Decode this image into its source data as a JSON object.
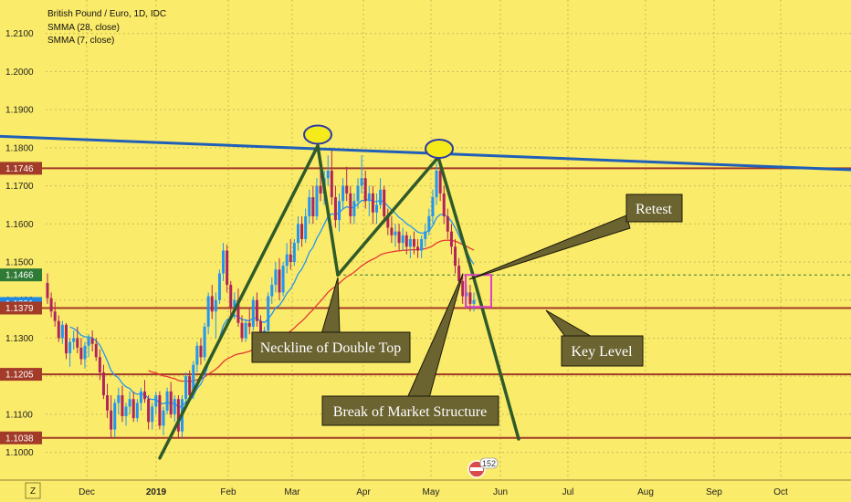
{
  "chart_data": {
    "type": "candlestick",
    "title": "British Pound / Euro, 1D, IDC",
    "indicators": [
      {
        "name": "SMMA (28, close)",
        "color": "#e53935"
      },
      {
        "name": "SMMA (7, close)",
        "color": "#2196f3"
      }
    ],
    "y_ticks": [
      "1.2100",
      "1.2000",
      "1.1900",
      "1.1800",
      "1.1700",
      "1.1600",
      "1.1500",
      "1.1400",
      "1.1300",
      "1.1200",
      "1.1100",
      "1.1000"
    ],
    "ylim": [
      1.0955,
      1.2155
    ],
    "x_ticks": [
      "Dec",
      "2019",
      "Feb",
      "Mar",
      "Apr",
      "May",
      "Jun",
      "Jul",
      "Aug",
      "Sep",
      "Oct"
    ],
    "price_badges": [
      {
        "label": "1.1746",
        "value": 1.1746,
        "color": "#a23b28"
      },
      {
        "label": "1.1466",
        "value": 1.1466,
        "color": "#2f7a35"
      },
      {
        "label": "1.1391",
        "value": 1.1391,
        "color": "#1e88e5"
      },
      {
        "label": "1.1379",
        "value": 1.1379,
        "color": "#a23b28"
      },
      {
        "label": "1.1205",
        "value": 1.1205,
        "color": "#a23b28"
      },
      {
        "label": "1.1038",
        "value": 1.1038,
        "color": "#a23b28"
      }
    ],
    "horizontal_levels": [
      1.1746,
      1.1379,
      1.1205,
      1.1038
    ],
    "neckline_level": 1.1466,
    "trendline": {
      "from": [
        0,
        1.183
      ],
      "to": [
        932,
        1.1742
      ]
    },
    "pattern_lines": [
      [
        [
          175,
          1.0985
        ],
        [
          348,
          1.1805
        ]
      ],
      [
        [
          348,
          1.1805
        ],
        [
          370,
          1.1466
        ]
      ],
      [
        [
          370,
          1.1466
        ],
        [
          480,
          1.1775
        ]
      ],
      [
        [
          480,
          1.1775
        ],
        [
          518,
          1.1466
        ]
      ],
      [
        [
          518,
          1.1466
        ],
        [
          568,
          1.1035
        ]
      ]
    ],
    "peaks": [
      {
        "x": 348,
        "y": 1.182
      },
      {
        "x": 481,
        "y": 1.1783
      }
    ],
    "retest_box": {
      "x1": 510,
      "x2": 538,
      "y1": 1.1382,
      "y2": 1.1466
    },
    "ohlc": [
      [
        1.1445,
        1.147,
        1.139,
        1.1405
      ],
      [
        1.1405,
        1.142,
        1.1355,
        1.137
      ],
      [
        1.137,
        1.1395,
        1.133,
        1.1345
      ],
      [
        1.1345,
        1.136,
        1.129,
        1.13
      ],
      [
        1.13,
        1.1345,
        1.1285,
        1.1335
      ],
      [
        1.1335,
        1.134,
        1.1245,
        1.126
      ],
      [
        1.126,
        1.13,
        1.1225,
        1.129
      ],
      [
        1.129,
        1.132,
        1.127,
        1.13
      ],
      [
        1.13,
        1.133,
        1.126,
        1.1275
      ],
      [
        1.1275,
        1.13,
        1.123,
        1.1245
      ],
      [
        1.1245,
        1.129,
        1.122,
        1.128
      ],
      [
        1.128,
        1.131,
        1.125,
        1.13
      ],
      [
        1.13,
        1.132,
        1.1265,
        1.1285
      ],
      [
        1.1285,
        1.13,
        1.124,
        1.125
      ],
      [
        1.125,
        1.127,
        1.119,
        1.121
      ],
      [
        1.121,
        1.123,
        1.114,
        1.115
      ],
      [
        1.115,
        1.118,
        1.109,
        1.111
      ],
      [
        1.111,
        1.115,
        1.104,
        1.106
      ],
      [
        1.106,
        1.114,
        1.104,
        1.113
      ],
      [
        1.113,
        1.117,
        1.11,
        1.115
      ],
      [
        1.115,
        1.1175,
        1.108,
        1.1095
      ],
      [
        1.1095,
        1.113,
        1.107,
        1.112
      ],
      [
        1.112,
        1.116,
        1.11,
        1.114
      ],
      [
        1.114,
        1.116,
        1.108,
        1.109
      ],
      [
        1.109,
        1.114,
        1.108,
        1.113
      ],
      [
        1.113,
        1.117,
        1.111,
        1.116
      ],
      [
        1.116,
        1.119,
        1.113,
        1.114
      ],
      [
        1.114,
        1.115,
        1.106,
        1.108
      ],
      [
        1.108,
        1.113,
        1.106,
        1.112
      ],
      [
        1.112,
        1.116,
        1.11,
        1.115
      ],
      [
        1.115,
        1.116,
        1.106,
        1.107
      ],
      [
        1.107,
        1.112,
        1.1045,
        1.111
      ],
      [
        1.111,
        1.117,
        1.11,
        1.116
      ],
      [
        1.116,
        1.1185,
        1.109,
        1.11
      ],
      [
        1.11,
        1.115,
        1.108,
        1.114
      ],
      [
        1.114,
        1.115,
        1.104,
        1.1055
      ],
      [
        1.1055,
        1.115,
        1.104,
        1.114
      ],
      [
        1.114,
        1.121,
        1.112,
        1.12
      ],
      [
        1.12,
        1.1215,
        1.114,
        1.115
      ],
      [
        1.115,
        1.124,
        1.114,
        1.123
      ],
      [
        1.123,
        1.129,
        1.121,
        1.128
      ],
      [
        1.128,
        1.13,
        1.123,
        1.125
      ],
      [
        1.125,
        1.134,
        1.124,
        1.133
      ],
      [
        1.133,
        1.142,
        1.131,
        1.141
      ],
      [
        1.141,
        1.144,
        1.135,
        1.137
      ],
      [
        1.137,
        1.142,
        1.13,
        1.14
      ],
      [
        1.14,
        1.148,
        1.139,
        1.147
      ],
      [
        1.147,
        1.155,
        1.145,
        1.153
      ],
      [
        1.153,
        1.1545,
        1.142,
        1.144
      ],
      [
        1.144,
        1.145,
        1.136,
        1.138
      ],
      [
        1.138,
        1.142,
        1.135,
        1.14
      ],
      [
        1.14,
        1.143,
        1.133,
        1.134
      ],
      [
        1.134,
        1.136,
        1.129,
        1.13
      ],
      [
        1.13,
        1.135,
        1.129,
        1.134
      ],
      [
        1.134,
        1.138,
        1.131,
        1.133
      ],
      [
        1.133,
        1.141,
        1.132,
        1.14
      ],
      [
        1.14,
        1.142,
        1.133,
        1.1345
      ],
      [
        1.1345,
        1.136,
        1.129,
        1.13
      ],
      [
        1.13,
        1.133,
        1.128,
        1.132
      ],
      [
        1.132,
        1.142,
        1.131,
        1.141
      ],
      [
        1.141,
        1.146,
        1.139,
        1.144
      ],
      [
        1.144,
        1.15,
        1.142,
        1.148
      ],
      [
        1.148,
        1.151,
        1.14,
        1.142
      ],
      [
        1.142,
        1.15,
        1.141,
        1.149
      ],
      [
        1.149,
        1.155,
        1.147,
        1.152
      ],
      [
        1.152,
        1.156,
        1.148,
        1.15
      ],
      [
        1.15,
        1.156,
        1.149,
        1.155
      ],
      [
        1.155,
        1.162,
        1.153,
        1.16
      ],
      [
        1.16,
        1.162,
        1.154,
        1.156
      ],
      [
        1.156,
        1.164,
        1.155,
        1.162
      ],
      [
        1.162,
        1.169,
        1.16,
        1.167
      ],
      [
        1.167,
        1.17,
        1.16,
        1.162
      ],
      [
        1.162,
        1.172,
        1.161,
        1.17
      ],
      [
        1.17,
        1.176,
        1.166,
        1.168
      ],
      [
        1.168,
        1.174,
        1.165,
        1.172
      ],
      [
        1.172,
        1.178,
        1.17,
        1.174
      ],
      [
        1.174,
        1.18,
        1.165,
        1.167
      ],
      [
        1.167,
        1.17,
        1.159,
        1.161
      ],
      [
        1.161,
        1.168,
        1.158,
        1.166
      ],
      [
        1.166,
        1.172,
        1.164,
        1.17
      ],
      [
        1.17,
        1.175,
        1.166,
        1.168
      ],
      [
        1.168,
        1.17,
        1.16,
        1.162
      ],
      [
        1.162,
        1.168,
        1.16,
        1.166
      ],
      [
        1.166,
        1.172,
        1.164,
        1.17
      ],
      [
        1.17,
        1.178,
        1.168,
        1.172
      ],
      [
        1.172,
        1.174,
        1.164,
        1.166
      ],
      [
        1.166,
        1.17,
        1.162,
        1.168
      ],
      [
        1.168,
        1.17,
        1.16,
        1.163
      ],
      [
        1.163,
        1.168,
        1.16,
        1.165
      ],
      [
        1.165,
        1.172,
        1.164,
        1.169
      ],
      [
        1.169,
        1.17,
        1.161,
        1.162
      ],
      [
        1.162,
        1.164,
        1.157,
        1.159
      ],
      [
        1.159,
        1.162,
        1.155,
        1.157
      ],
      [
        1.157,
        1.16,
        1.154,
        1.158
      ],
      [
        1.158,
        1.16,
        1.153,
        1.155
      ],
      [
        1.155,
        1.159,
        1.153,
        1.157
      ],
      [
        1.157,
        1.158,
        1.152,
        1.154
      ],
      [
        1.154,
        1.157,
        1.151,
        1.156
      ],
      [
        1.156,
        1.158,
        1.152,
        1.154
      ],
      [
        1.154,
        1.156,
        1.151,
        1.153
      ],
      [
        1.153,
        1.157,
        1.151,
        1.156
      ],
      [
        1.156,
        1.16,
        1.154,
        1.158
      ],
      [
        1.158,
        1.164,
        1.157,
        1.162
      ],
      [
        1.162,
        1.169,
        1.16,
        1.167
      ],
      [
        1.167,
        1.176,
        1.165,
        1.174
      ],
      [
        1.174,
        1.177,
        1.166,
        1.168
      ],
      [
        1.168,
        1.17,
        1.16,
        1.162
      ],
      [
        1.162,
        1.164,
        1.156,
        1.158
      ],
      [
        1.158,
        1.16,
        1.152,
        1.154
      ],
      [
        1.154,
        1.156,
        1.147,
        1.149
      ],
      [
        1.149,
        1.151,
        1.143,
        1.145
      ],
      [
        1.145,
        1.147,
        1.139,
        1.141
      ],
      [
        1.141,
        1.144,
        1.138,
        1.142
      ],
      [
        1.142,
        1.144,
        1.137,
        1.139
      ],
      [
        1.139,
        1.142,
        1.137,
        1.14
      ]
    ]
  },
  "annotations": {
    "neckline": "Neckline of Double Top",
    "retest": "Retest",
    "key_level": "Key Level",
    "break_structure": "Break of Market Structure"
  },
  "ui": {
    "scale_toggle": "Z",
    "event_count": "152"
  },
  "colors": {
    "background": "#fbeb6a",
    "grid": "#c8bb58",
    "level": "#a23b28",
    "trendline": "#1f5fb8",
    "pattern": "#2f5a2a",
    "annotation_fill": "#6b6330",
    "peak_fill": "#f5ea1a",
    "peak_stroke": "#2c3aa8",
    "retest_box": "#e040c8",
    "bull": "#2196f3",
    "bear": "#b0245c"
  }
}
